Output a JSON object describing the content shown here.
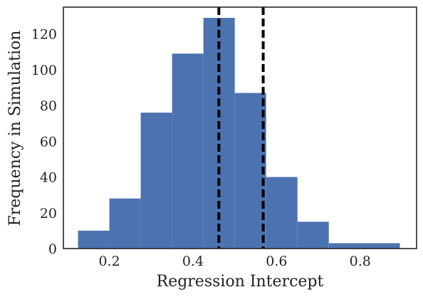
{
  "chart_data": {
    "type": "bar",
    "subtype": "histogram",
    "title": "",
    "xlabel": "Regression Intercept",
    "ylabel": "Frequency in Simulation",
    "xlim": [
      0.09,
      0.935
    ],
    "ylim": [
      0,
      135
    ],
    "bin_edges": [
      0.125,
      0.2,
      0.275,
      0.35,
      0.425,
      0.5,
      0.575,
      0.65,
      0.725,
      0.8,
      0.895
    ],
    "values": [
      10,
      28,
      76,
      109,
      129,
      87,
      40,
      15,
      3,
      3
    ],
    "bar_color": "#4C72B0",
    "vlines": [
      {
        "x": 0.462,
        "style": "dashed",
        "color": "#000000"
      },
      {
        "x": 0.568,
        "style": "dashed",
        "color": "#000000"
      }
    ],
    "x_ticks": [
      {
        "value": 0.2,
        "label": "0.2"
      },
      {
        "value": 0.4,
        "label": "0.4"
      },
      {
        "value": 0.6,
        "label": "0.6"
      },
      {
        "value": 0.8,
        "label": "0.8"
      }
    ],
    "y_ticks": [
      {
        "value": 0,
        "label": "0"
      },
      {
        "value": 20,
        "label": "20"
      },
      {
        "value": 40,
        "label": "40"
      },
      {
        "value": 60,
        "label": "60"
      },
      {
        "value": 80,
        "label": "80"
      },
      {
        "value": 100,
        "label": "100"
      },
      {
        "value": 120,
        "label": "120"
      }
    ],
    "grid": false,
    "legend": "none"
  }
}
